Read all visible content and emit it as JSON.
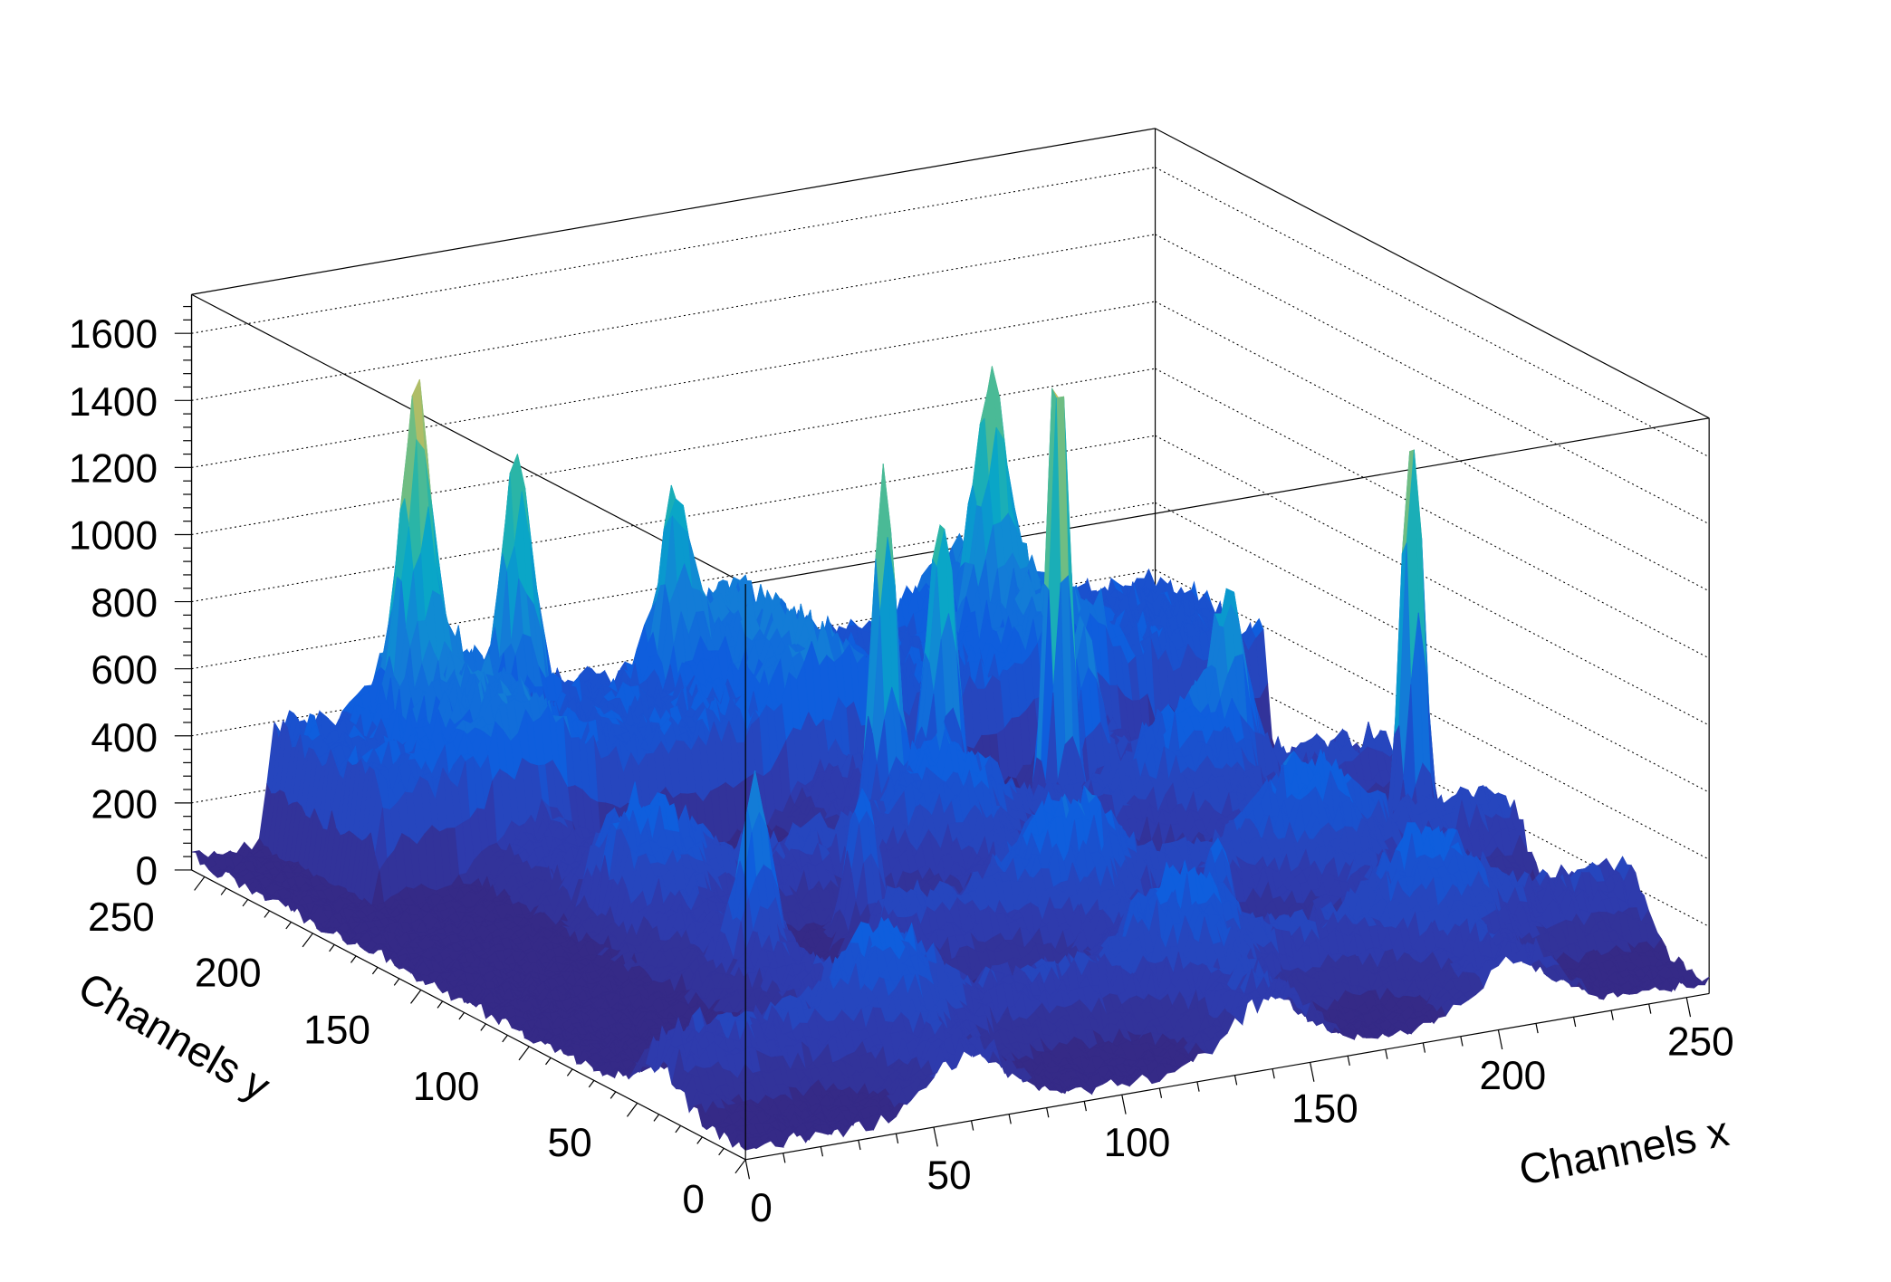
{
  "chart_data": {
    "type": "surface",
    "title": "",
    "xlabel": "Channels x",
    "ylabel": "Channels y",
    "zlabel": "",
    "xlim": [
      0,
      256
    ],
    "ylim": [
      0,
      256
    ],
    "zlim": [
      0,
      1716
    ],
    "x_ticks": [
      "0",
      "50",
      "100",
      "150",
      "200",
      "250"
    ],
    "y_ticks": [
      "0",
      "50",
      "100",
      "150",
      "200",
      "250"
    ],
    "z_ticks": [
      "0",
      "200",
      "400",
      "600",
      "800",
      "1000",
      "1200",
      "1400",
      "1600"
    ],
    "grid": true,
    "background_level": 40,
    "plateau": {
      "x_from": 20,
      "y_from": 205,
      "height": 330
    },
    "ridges_along_x": [
      {
        "y": 150,
        "height": 220,
        "x_from": 50
      },
      {
        "y": 95,
        "height": 230,
        "x_from": 90
      },
      {
        "y": 40,
        "height": 200,
        "x_from": 0
      }
    ],
    "ridges_along_y": [
      {
        "x": 60,
        "height": 180
      },
      {
        "x": 140,
        "height": 200
      },
      {
        "x": 205,
        "height": 190
      }
    ],
    "peaks": [
      {
        "x": 179,
        "y": 167,
        "height": 1480
      },
      {
        "x": 242,
        "y": 113,
        "height": 1300
      },
      {
        "x": 132,
        "y": 166,
        "height": 1050
      },
      {
        "x": 154,
        "y": 177,
        "height": 900
      },
      {
        "x": 55,
        "y": 248,
        "height": 800
      },
      {
        "x": 82,
        "y": 248,
        "height": 700
      },
      {
        "x": 124,
        "y": 248,
        "height": 520
      },
      {
        "x": 200,
        "y": 235,
        "height": 620
      },
      {
        "x": 190,
        "y": 175,
        "height": 560
      },
      {
        "x": 100,
        "y": 120,
        "height": 480
      },
      {
        "x": 215,
        "y": 150,
        "height": 430
      },
      {
        "x": 60,
        "y": 100,
        "height": 440
      },
      {
        "x": 160,
        "y": 60,
        "height": 380
      }
    ],
    "palette": [
      "#352a87",
      "#2d3fb5",
      "#0f5cdd",
      "#1481d6",
      "#06a4ca",
      "#2eb7a4",
      "#87bf77",
      "#d1bb59",
      "#fec832",
      "#f9fb0e"
    ]
  }
}
